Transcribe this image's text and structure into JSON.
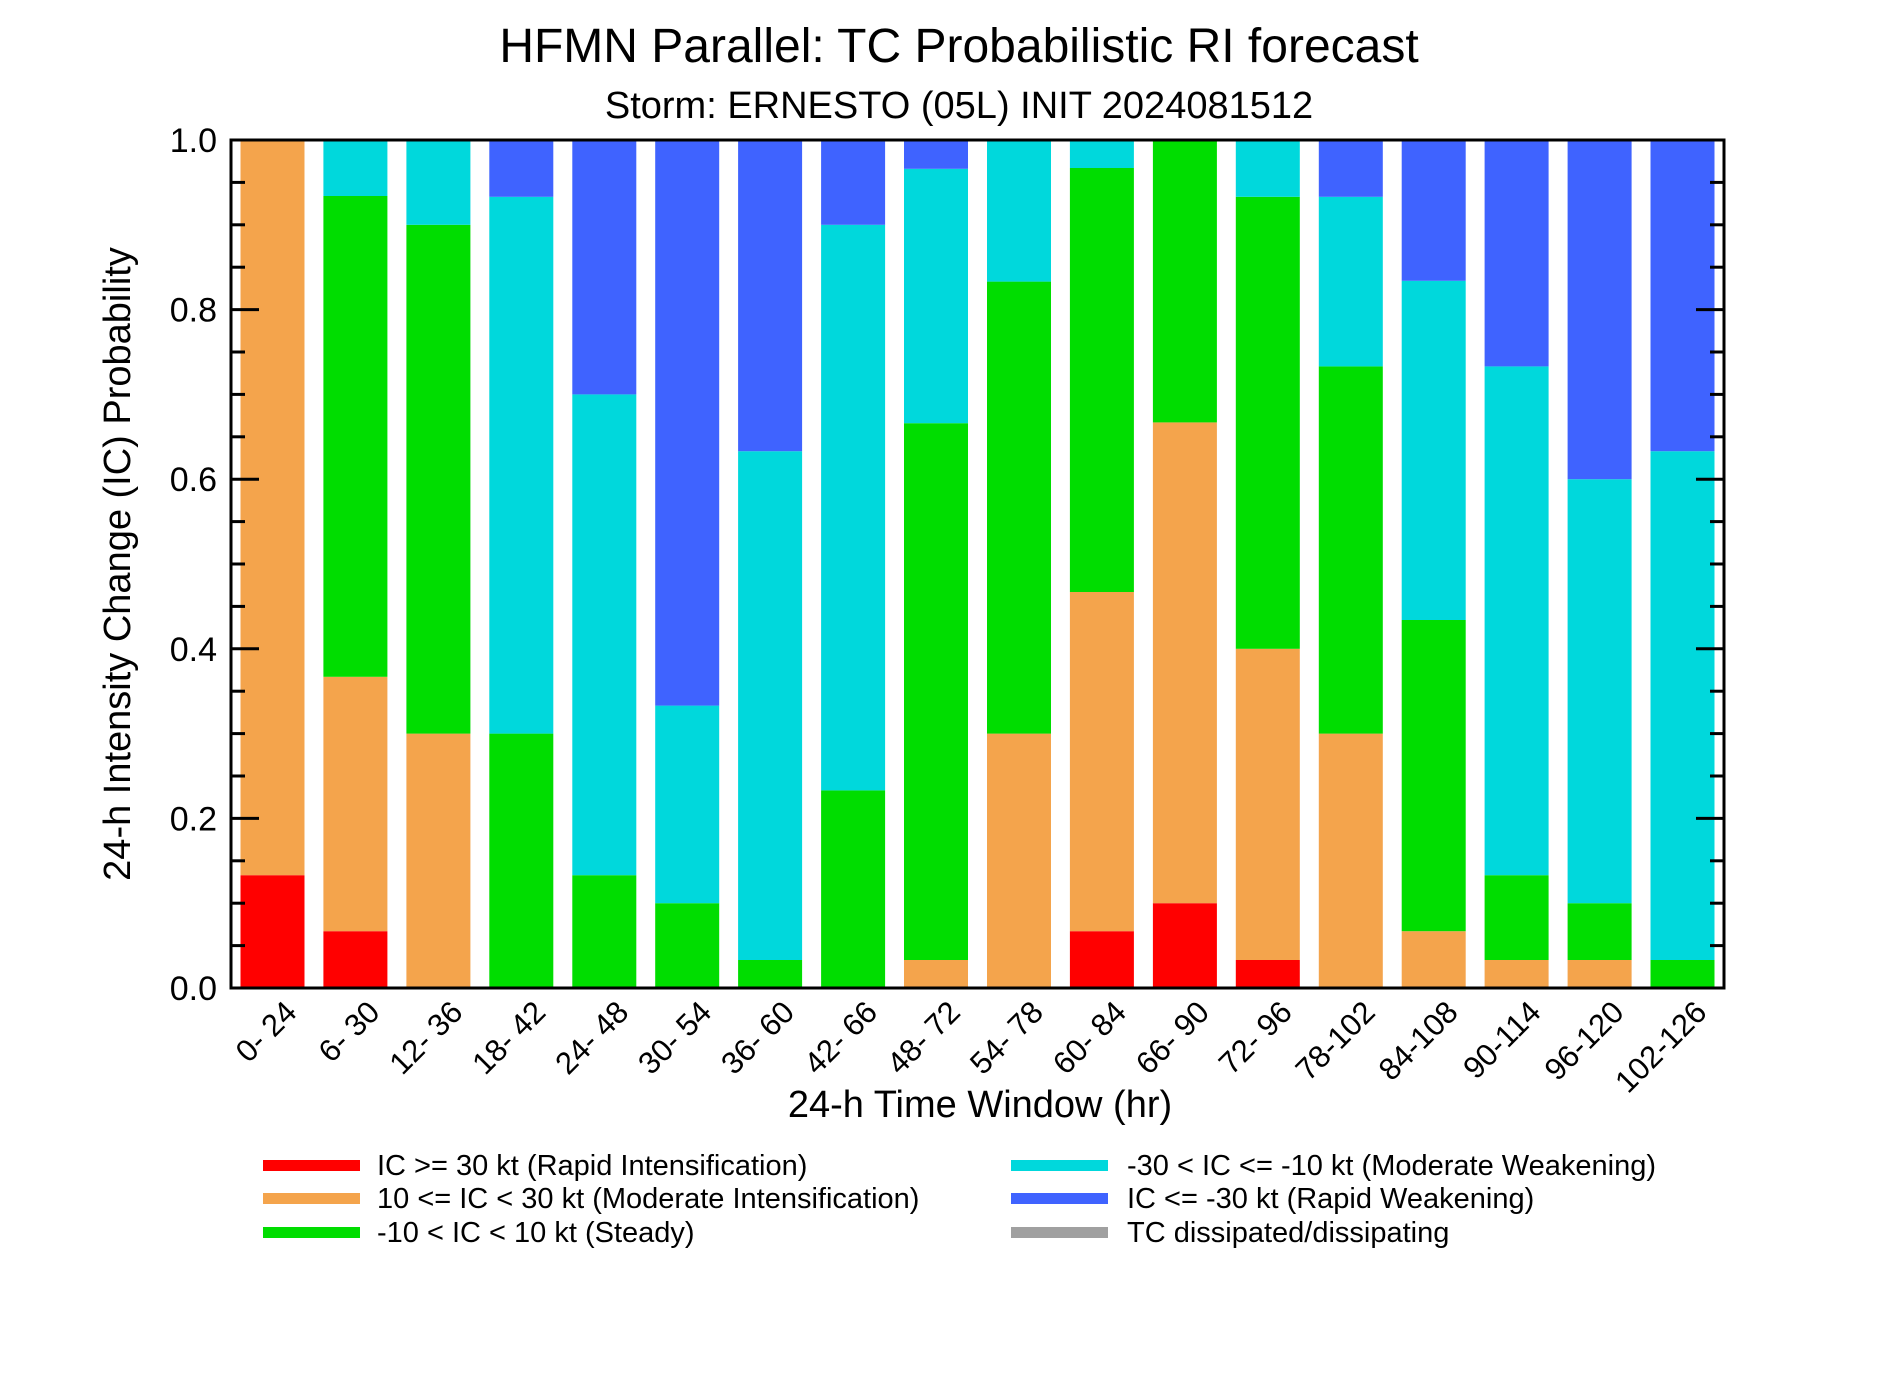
{
  "chart_data": {
    "type": "bar",
    "stacked": true,
    "title": "HFMN Parallel: TC Probabilistic RI forecast",
    "subtitle": "Storm: ERNESTO (05L) INIT 2024081512",
    "xlabel": "24-h Time Window (hr)",
    "ylabel": "24-h Intensity Change (IC) Probability",
    "ylim": [
      0,
      1
    ],
    "yticks": [
      "0.0",
      "0.2",
      "0.4",
      "0.6",
      "0.8",
      "1.0"
    ],
    "categories": [
      "0- 24",
      "6- 30",
      "12- 36",
      "18- 42",
      "24- 48",
      "30- 54",
      "36- 60",
      "42- 66",
      "48- 72",
      "54- 78",
      "60- 84",
      "66- 90",
      "72- 96",
      "78-102",
      "84-108",
      "90-114",
      "96-120",
      "102-126"
    ],
    "series": [
      {
        "name": "IC >= 30 kt (Rapid Intensification)",
        "color": "#ff0000",
        "values": [
          0.133,
          0.067,
          0,
          0,
          0,
          0,
          0,
          0,
          0,
          0,
          0.067,
          0.1,
          0.033,
          0,
          0,
          0,
          0,
          0
        ]
      },
      {
        "name": "10 <= IC < 30 kt (Moderate Intensification)",
        "color": "#f4a44c",
        "values": [
          0.867,
          0.3,
          0.3,
          0,
          0,
          0,
          0,
          0,
          0.033,
          0.3,
          0.4,
          0.567,
          0.367,
          0.3,
          0.067,
          0.033,
          0.033,
          0
        ]
      },
      {
        "name": "-10 < IC < 10 kt (Steady)",
        "color": "#00dd00",
        "values": [
          0,
          0.567,
          0.6,
          0.3,
          0.133,
          0.1,
          0.033,
          0.233,
          0.633,
          0.533,
          0.5,
          0.333,
          0.533,
          0.433,
          0.367,
          0.1,
          0.067,
          0.033
        ]
      },
      {
        "name": "-30 < IC <= -10 kt (Moderate Weakening)",
        "color": "#00d8dc",
        "values": [
          0,
          0.067,
          0.1,
          0.633,
          0.567,
          0.233,
          0.6,
          0.667,
          0.3,
          0.167,
          0.033,
          0,
          0.067,
          0.2,
          0.4,
          0.6,
          0.5,
          0.6
        ]
      },
      {
        "name": "IC <= -30 kt (Rapid Weakening)",
        "color": "#3f63ff",
        "values": [
          0,
          0,
          0,
          0.067,
          0.3,
          0.667,
          0.367,
          0.1,
          0.033,
          0,
          0,
          0,
          0,
          0.067,
          0.167,
          0.267,
          0.4,
          0.367
        ]
      },
      {
        "name": "TC dissipated/dissipating",
        "color": "#a0a0a0",
        "values": [
          0,
          0,
          0,
          0,
          0,
          0,
          0,
          0,
          0,
          0,
          0,
          0,
          0,
          0,
          0,
          0,
          0,
          0
        ]
      }
    ]
  }
}
